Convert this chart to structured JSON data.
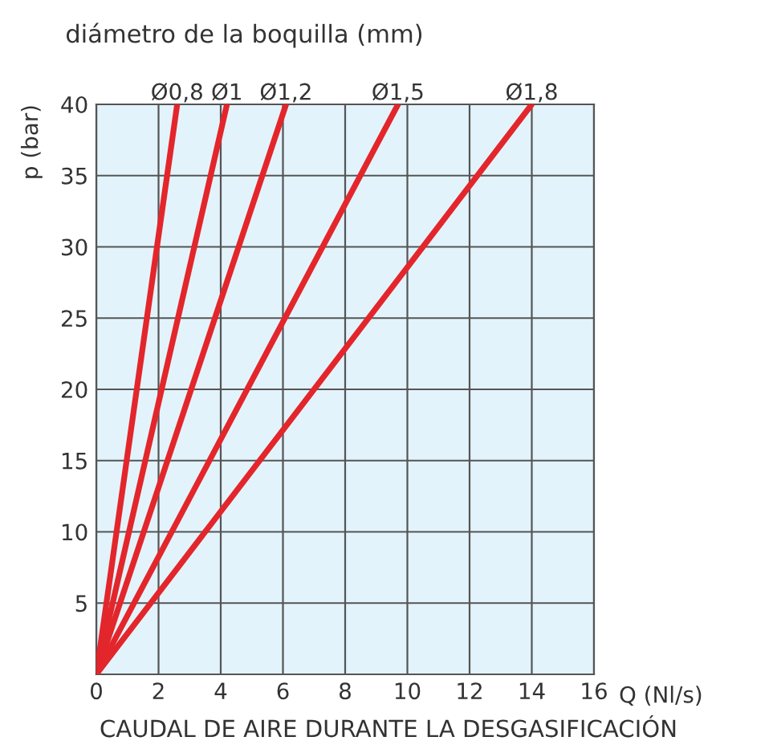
{
  "chart_data": {
    "type": "line",
    "title": "diámetro de la boquilla (mm)",
    "xlabel": "Q (Nl/s)",
    "ylabel": "p (bar)",
    "annotations": [
      "CAUDAL DE AIRE DURANTE LA DESGASIFICACIÓN"
    ],
    "series": [
      {
        "name": "Ø0,8",
        "color": "#e3262b",
        "x": [
          0,
          2.6
        ],
        "values": [
          0,
          40
        ]
      },
      {
        "name": "Ø1",
        "color": "#e3262b",
        "x": [
          0,
          4.2
        ],
        "values": [
          0,
          40
        ]
      },
      {
        "name": "Ø1,2",
        "color": "#e3262b",
        "x": [
          0,
          6.1
        ],
        "values": [
          0,
          40
        ]
      },
      {
        "name": "Ø1,5",
        "color": "#e3262b",
        "x": [
          0,
          9.7
        ],
        "values": [
          0,
          40
        ]
      },
      {
        "name": "Ø1,8",
        "color": "#e3262b",
        "x": [
          0,
          14
        ],
        "values": [
          0,
          40
        ]
      }
    ],
    "xlim": [
      0,
      16
    ],
    "ylim": [
      0,
      40
    ],
    "xticks": [
      0,
      2,
      4,
      6,
      8,
      10,
      12,
      14,
      16
    ],
    "yticks": [
      5,
      10,
      15,
      20,
      25,
      30,
      35,
      40
    ],
    "grid": true,
    "legend": false,
    "marker": "none",
    "line_style": "solid"
  }
}
